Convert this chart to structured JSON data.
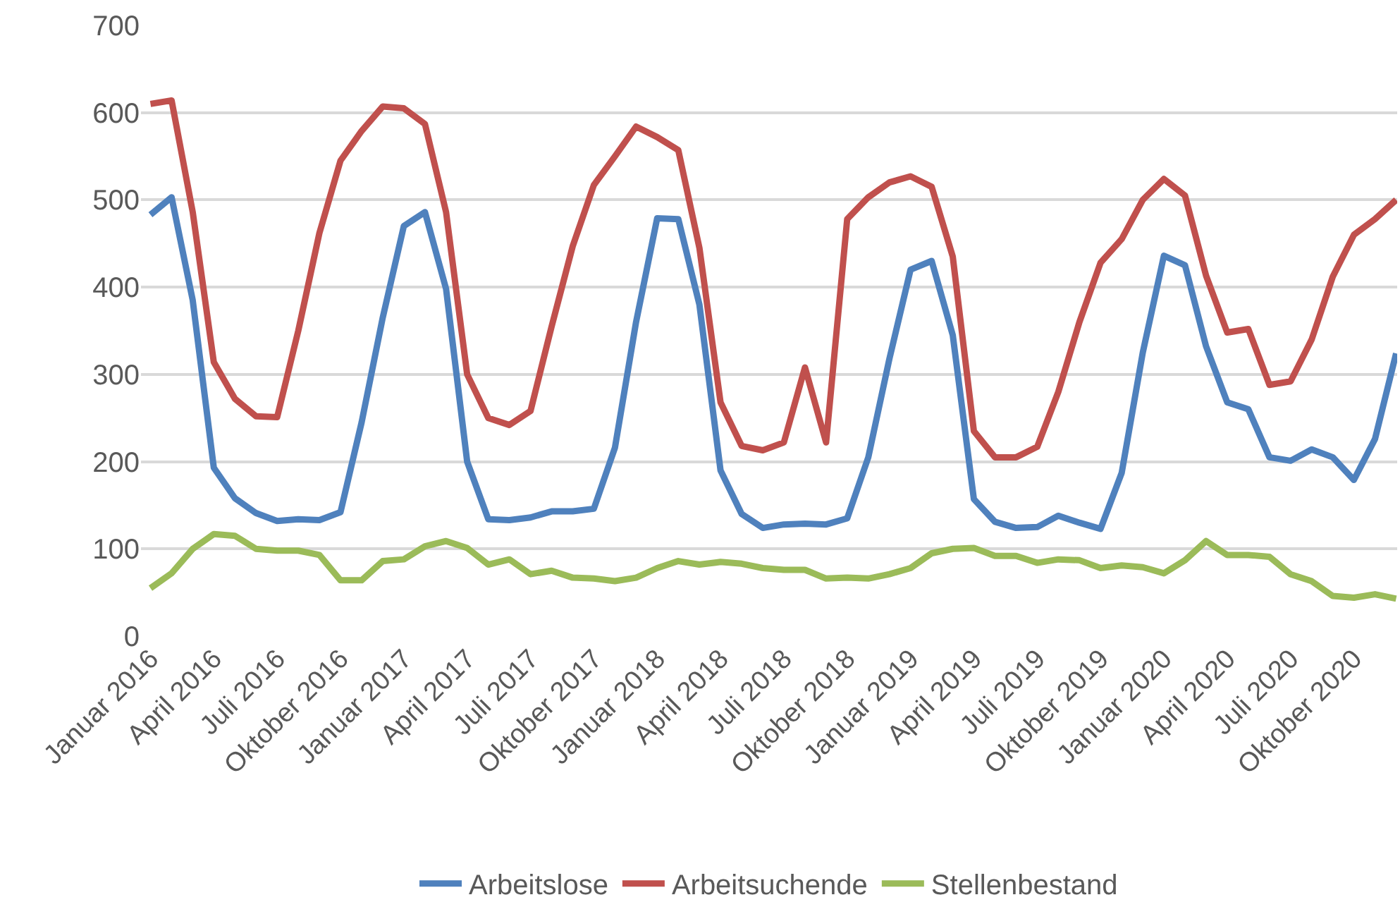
{
  "chart_data": {
    "type": "line",
    "categories": [
      "Januar 2016",
      null,
      null,
      "April 2016",
      null,
      null,
      "Juli 2016",
      null,
      null,
      "Oktober 2016",
      null,
      null,
      "Januar 2017",
      null,
      null,
      "April 2017",
      null,
      null,
      "Juli 2017",
      null,
      null,
      "Oktober 2017",
      null,
      null,
      "Januar 2018",
      null,
      null,
      "April 2018",
      null,
      null,
      "Juli 2018",
      null,
      null,
      "Oktober 2018",
      null,
      null,
      "Januar 2019",
      null,
      null,
      "April 2019",
      null,
      null,
      "Juli 2019",
      null,
      null,
      "Oktober 2019",
      null,
      null,
      "Januar 2020",
      null,
      null,
      "April 2020",
      null,
      null,
      "Juli 2020",
      null,
      null,
      "Oktober 2020",
      null,
      null
    ],
    "series": [
      {
        "name": "Arbeitslose",
        "color": "#4f81bd",
        "values": [
          483,
          503,
          385,
          193,
          158,
          141,
          132,
          134,
          133,
          142,
          245,
          365,
          470,
          486,
          398,
          200,
          134,
          133,
          136,
          143,
          143,
          146,
          216,
          360,
          479,
          478,
          380,
          190,
          140,
          124,
          128,
          129,
          128,
          135,
          205,
          318,
          420,
          430,
          345,
          157,
          131,
          124,
          125,
          138,
          130,
          123,
          187,
          325,
          436,
          425,
          332,
          268,
          260,
          205,
          201,
          214,
          205,
          179,
          226,
          324
        ]
      },
      {
        "name": "Arbeitsuchende",
        "color": "#c0504d",
        "values": [
          610,
          614,
          486,
          314,
          272,
          252,
          251,
          350,
          462,
          545,
          579,
          607,
          605,
          587,
          486,
          300,
          250,
          242,
          258,
          355,
          447,
          517,
          550,
          584,
          572,
          557,
          445,
          268,
          218,
          213,
          222,
          308,
          222,
          478,
          503,
          520,
          527,
          515,
          435,
          235,
          205,
          205,
          217,
          280,
          360,
          428,
          455,
          500,
          524,
          505,
          413,
          348,
          352,
          288,
          292,
          340,
          412,
          460,
          478,
          500
        ]
      },
      {
        "name": "Stellenbestand",
        "color": "#9bbb59",
        "values": [
          55,
          72,
          100,
          117,
          115,
          100,
          98,
          98,
          93,
          64,
          64,
          86,
          88,
          103,
          109,
          101,
          82,
          88,
          71,
          75,
          67,
          66,
          63,
          67,
          78,
          86,
          82,
          85,
          83,
          78,
          76,
          76,
          66,
          67,
          66,
          71,
          78,
          95,
          100,
          101,
          92,
          92,
          84,
          88,
          87,
          78,
          81,
          79,
          72,
          87,
          109,
          93,
          93,
          91,
          71,
          63,
          46,
          44,
          48,
          43
        ]
      }
    ],
    "ylim": [
      0,
      700
    ],
    "yticks": [
      0,
      100,
      200,
      300,
      400,
      500,
      600,
      700
    ],
    "grid": "y",
    "legend": "bottom",
    "marker": "none",
    "line_style": "solid"
  }
}
